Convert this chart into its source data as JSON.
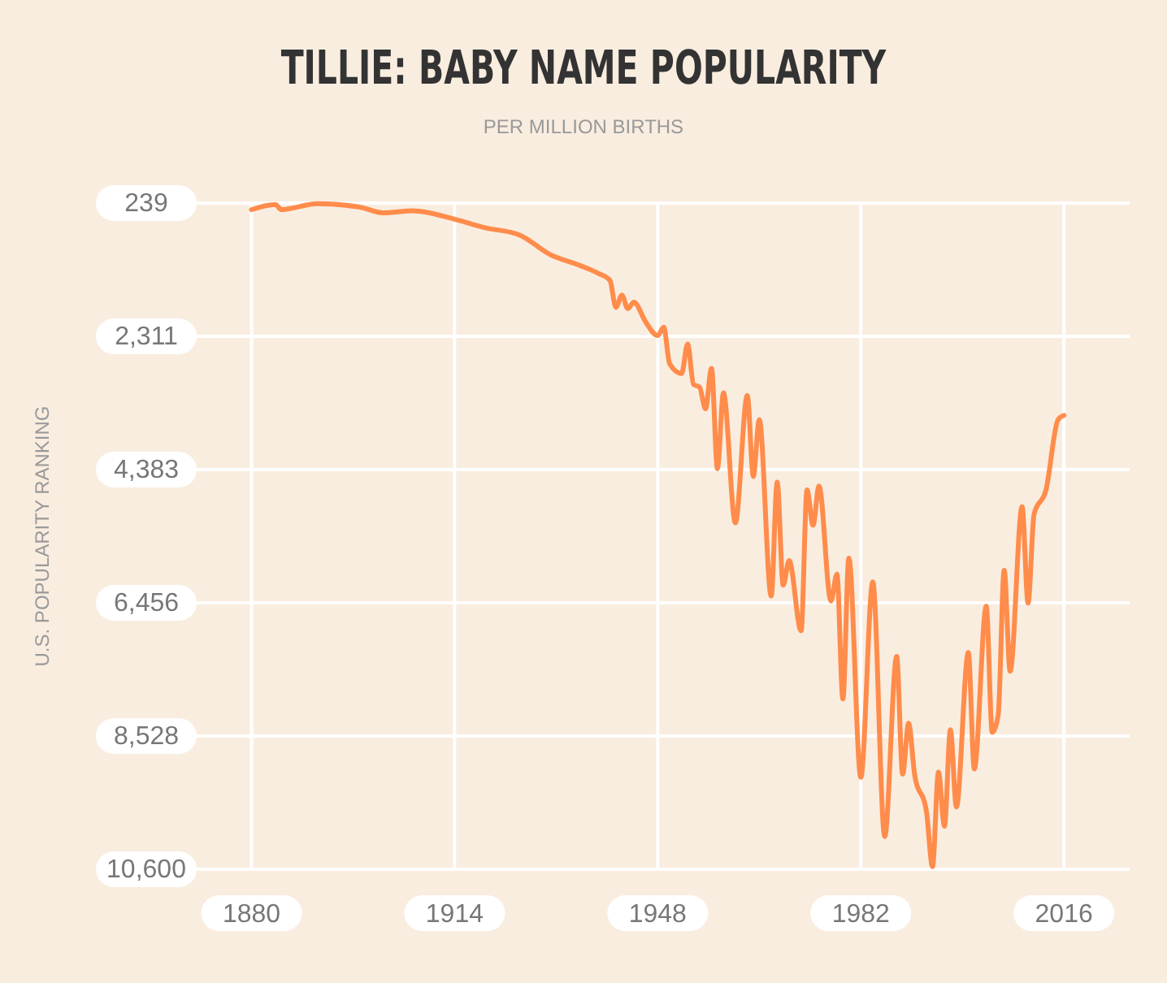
{
  "chart_data": {
    "type": "line",
    "title": "TILLIE: BABY NAME POPULARITY",
    "subtitle": "PER MILLION BIRTHS",
    "ylabel": "U.S. POPULARITY RANKING",
    "xlim": [
      1870,
      2027
    ],
    "xticks": [
      1880,
      1914,
      1948,
      1982,
      2016
    ],
    "ylim": [
      10600,
      239
    ],
    "yticks": [
      239,
      {
        "value": 2311,
        "label": "2,311"
      },
      {
        "value": 4383,
        "label": "4,383"
      },
      {
        "value": 6456,
        "label": "6,456"
      },
      {
        "value": 8528,
        "label": "8,528"
      },
      {
        "value": 10600,
        "label": "10,600"
      }
    ],
    "grid": true,
    "marker": "none",
    "line_style": "solid",
    "series": [
      {
        "color": "#ff8c4b",
        "x": [
          1880,
          1884,
          1885,
          1891,
          1898,
          1902,
          1907,
          1914,
          1919,
          1925,
          1930,
          1935,
          1938,
          1940,
          1941,
          1942,
          1943,
          1944,
          1946,
          1948,
          1949,
          1950,
          1952,
          1953,
          1954,
          1955,
          1956,
          1957,
          1958,
          1959,
          1961,
          1963,
          1964,
          1965,
          1967,
          1968,
          1969,
          1970,
          1972,
          1973,
          1974,
          1975,
          1977,
          1978,
          1979,
          1980,
          1982,
          1984,
          1986,
          1988,
          1989,
          1990,
          1991,
          1993,
          1994,
          1995,
          1996,
          1997,
          1998,
          2000,
          2001,
          2003,
          2004,
          2005,
          2006,
          2007,
          2009,
          2010,
          2011,
          2013,
          2015,
          2016
        ],
        "values": [
          340,
          260,
          340,
          250,
          300,
          390,
          360,
          490,
          620,
          740,
          1040,
          1210,
          1330,
          1440,
          1860,
          1670,
          1880,
          1780,
          2090,
          2300,
          2170,
          2740,
          2890,
          2430,
          3060,
          3100,
          3440,
          2810,
          4370,
          3190,
          5210,
          3230,
          4490,
          3610,
          6350,
          4580,
          6180,
          5800,
          6890,
          4700,
          5250,
          4640,
          6430,
          6010,
          7950,
          5760,
          9170,
          6130,
          10090,
          7290,
          9120,
          8330,
          9120,
          9710,
          10560,
          9090,
          9930,
          8430,
          9630,
          7230,
          9040,
          6510,
          8470,
          8200,
          5950,
          7520,
          4960,
          6460,
          5080,
          4700,
          3610,
          3540
        ]
      }
    ]
  }
}
